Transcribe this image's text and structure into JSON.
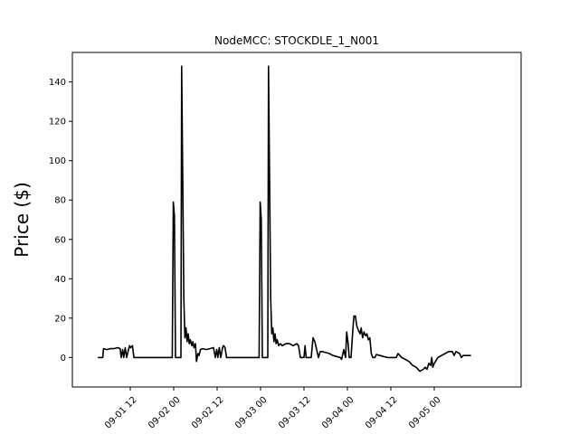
{
  "chart_data": {
    "type": "line",
    "title": "NodeMCC: STOCKDLE_1_N001",
    "xlabel": "",
    "ylabel": "Price ($)",
    "x_unit": "hours since 2023-09-01 00:00",
    "xlim": [
      -4,
      120
    ],
    "ylim": [
      -15,
      155
    ],
    "yticks": [
      0,
      20,
      40,
      60,
      80,
      100,
      120,
      140
    ],
    "xticks": [
      {
        "pos": 12,
        "label": "09-01 12"
      },
      {
        "pos": 24,
        "label": "09-02 00"
      },
      {
        "pos": 36,
        "label": "09-02 12"
      },
      {
        "pos": 48,
        "label": "09-03 00"
      },
      {
        "pos": 60,
        "label": "09-03 12"
      },
      {
        "pos": 72,
        "label": "09-04 00"
      },
      {
        "pos": 84,
        "label": "09-04 12"
      },
      {
        "pos": 96,
        "label": "09-05 00"
      }
    ],
    "grid": false,
    "series": [
      {
        "color": "#000000",
        "points": [
          [
            3.2,
            0
          ],
          [
            4.4,
            0
          ],
          [
            4.6,
            4.5
          ],
          [
            5.6,
            4
          ],
          [
            6.5,
            4.5
          ],
          [
            7.5,
            4.5
          ],
          [
            8.6,
            5
          ],
          [
            9.2,
            4.5
          ],
          [
            9.5,
            0
          ],
          [
            9.9,
            4
          ],
          [
            10.2,
            0
          ],
          [
            10.6,
            5
          ],
          [
            11,
            0
          ],
          [
            11.5,
            4
          ],
          [
            11.8,
            6
          ],
          [
            12.1,
            5
          ],
          [
            12.6,
            6
          ],
          [
            13,
            0
          ],
          [
            14,
            0
          ],
          [
            16,
            0
          ],
          [
            18,
            0
          ],
          [
            20,
            0
          ],
          [
            22,
            0
          ],
          [
            23.6,
            0
          ],
          [
            23.9,
            79
          ],
          [
            24.2,
            72
          ],
          [
            24.5,
            0
          ],
          [
            25.5,
            0
          ],
          [
            26,
            0
          ],
          [
            26.2,
            148
          ],
          [
            26.5,
            90
          ],
          [
            26.8,
            30
          ],
          [
            27.1,
            10
          ],
          [
            27.4,
            15
          ],
          [
            27.7,
            8
          ],
          [
            28,
            12
          ],
          [
            28.3,
            7
          ],
          [
            28.6,
            9
          ],
          [
            29,
            6
          ],
          [
            29.3,
            8
          ],
          [
            29.6,
            5
          ],
          [
            30,
            7
          ],
          [
            30.3,
            -2
          ],
          [
            30.7,
            2
          ],
          [
            31,
            1
          ],
          [
            31.4,
            4
          ],
          [
            32,
            4.5
          ],
          [
            33,
            4
          ],
          [
            34,
            4.5
          ],
          [
            35,
            5
          ],
          [
            35.5,
            0
          ],
          [
            35.9,
            4
          ],
          [
            36.2,
            0
          ],
          [
            36.6,
            5
          ],
          [
            37,
            0
          ],
          [
            37.5,
            5
          ],
          [
            37.8,
            6
          ],
          [
            38.2,
            5
          ],
          [
            38.6,
            0
          ],
          [
            40,
            0
          ],
          [
            42,
            0
          ],
          [
            44,
            0
          ],
          [
            46,
            0
          ],
          [
            47.6,
            0
          ],
          [
            47.9,
            79
          ],
          [
            48.2,
            70
          ],
          [
            48.5,
            0
          ],
          [
            49.5,
            0
          ],
          [
            50,
            0
          ],
          [
            50.2,
            148
          ],
          [
            50.5,
            90
          ],
          [
            50.8,
            30
          ],
          [
            51.1,
            12
          ],
          [
            51.4,
            15
          ],
          [
            51.7,
            8
          ],
          [
            52,
            12
          ],
          [
            52.3,
            7
          ],
          [
            52.6,
            9
          ],
          [
            53,
            6
          ],
          [
            53.5,
            7
          ],
          [
            54,
            6
          ],
          [
            55,
            7
          ],
          [
            56,
            7
          ],
          [
            57,
            6
          ],
          [
            58,
            7
          ],
          [
            58.5,
            6
          ],
          [
            59,
            0
          ],
          [
            60,
            0
          ],
          [
            60.3,
            6
          ],
          [
            60.6,
            0
          ],
          [
            61.5,
            0
          ],
          [
            62,
            0
          ],
          [
            62.5,
            10
          ],
          [
            63,
            8
          ],
          [
            63.5,
            4
          ],
          [
            64,
            0
          ],
          [
            64.5,
            3
          ],
          [
            65,
            3
          ],
          [
            66,
            2.5
          ],
          [
            67,
            2
          ],
          [
            68,
            1
          ],
          [
            69,
            0.5
          ],
          [
            70,
            0
          ],
          [
            70.4,
            -1
          ],
          [
            71,
            4
          ],
          [
            71.5,
            0
          ],
          [
            71.8,
            13
          ],
          [
            72.2,
            7
          ],
          [
            72.5,
            0
          ],
          [
            73,
            0
          ],
          [
            73.5,
            14
          ],
          [
            73.8,
            21
          ],
          [
            74.2,
            21
          ],
          [
            74.6,
            16
          ],
          [
            75,
            14
          ],
          [
            75.5,
            12
          ],
          [
            75.8,
            15
          ],
          [
            76.2,
            10
          ],
          [
            76.6,
            13
          ],
          [
            77,
            11
          ],
          [
            77.4,
            12
          ],
          [
            77.8,
            9
          ],
          [
            78.2,
            10
          ],
          [
            78.6,
            2
          ],
          [
            79,
            0
          ],
          [
            79.6,
            0
          ],
          [
            80,
            1.5
          ],
          [
            81,
            1
          ],
          [
            82,
            0.5
          ],
          [
            83,
            0
          ],
          [
            84,
            0
          ],
          [
            85,
            0
          ],
          [
            85.5,
            0
          ],
          [
            86,
            2
          ],
          [
            87,
            0
          ],
          [
            88,
            -1
          ],
          [
            89,
            -2
          ],
          [
            90,
            -4
          ],
          [
            91,
            -5
          ],
          [
            92,
            -7
          ],
          [
            93,
            -6
          ],
          [
            93.5,
            -5
          ],
          [
            94,
            -6
          ],
          [
            94.5,
            -3
          ],
          [
            95,
            -4
          ],
          [
            95.3,
            0
          ],
          [
            95.6,
            -5
          ],
          [
            96,
            -3
          ],
          [
            97,
            0
          ],
          [
            98,
            1
          ],
          [
            99,
            2
          ],
          [
            100,
            3
          ],
          [
            101,
            3
          ],
          [
            101.5,
            1
          ],
          [
            102,
            3
          ],
          [
            103,
            2
          ],
          [
            103.5,
            0
          ],
          [
            104,
            1
          ],
          [
            105,
            1
          ],
          [
            106,
            1
          ]
        ]
      }
    ]
  }
}
